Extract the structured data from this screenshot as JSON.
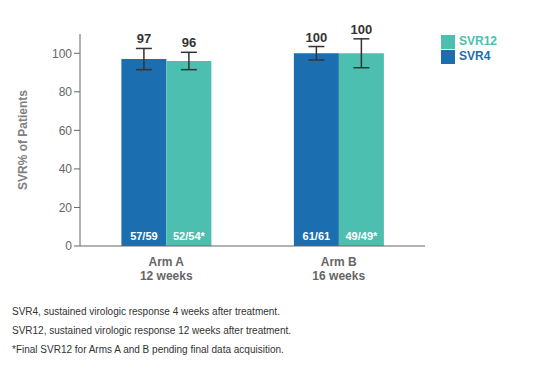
{
  "chart_data": {
    "type": "bar",
    "categories": [
      "Arm A\n12 weeks",
      "Arm B\n16 weeks"
    ],
    "series": [
      {
        "name": "SVR4",
        "color": "#1B6EAF",
        "values": [
          97,
          100
        ],
        "errors": [
          5.5,
          3.5
        ],
        "inner_labels": [
          "57/59",
          "61/61"
        ]
      },
      {
        "name": "SVR12",
        "color": "#4CBFB0",
        "values": [
          96,
          100
        ],
        "errors": [
          4.5,
          7.5
        ],
        "inner_labels": [
          "52/54*",
          "49/49*"
        ]
      }
    ],
    "ylabel": "SVR% of Patients",
    "ylim": [
      0,
      110
    ],
    "yticks": [
      0,
      20,
      40,
      60,
      80,
      100
    ],
    "grid": false,
    "legend": "right",
    "data_labels": true,
    "footnotes": [
      "SVR4, sustained virologic response 4 weeks after treatment.",
      "SVR12, sustained virologic response 12 weeks after treatment.",
      "*Final SVR12 for Arms A and B pending final data acquisition."
    ]
  }
}
